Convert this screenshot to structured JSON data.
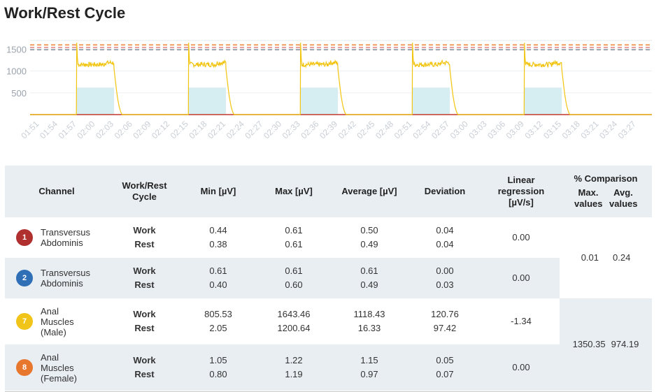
{
  "title": "Work/Rest Cycle",
  "chart_data": {
    "type": "line",
    "y_ticks": [
      "1500",
      "1000",
      "500"
    ],
    "y_tick_values": [
      1500,
      1000,
      500
    ],
    "ylim": [
      0,
      1700
    ],
    "x_tick_labels": [
      "01:51",
      "01:54",
      "01:57",
      "02:00",
      "02:03",
      "02:06",
      "02:09",
      "02:12",
      "02:15",
      "02:18",
      "02:21",
      "02:24",
      "02:27",
      "02:30",
      "02:33",
      "02:36",
      "02:39",
      "02:42",
      "02:45",
      "02:48",
      "02:51",
      "02:54",
      "02:57",
      "03:00",
      "03:03",
      "03:06",
      "03:09",
      "03:12",
      "03:15",
      "03:18",
      "03:21",
      "03:24",
      "03:27"
    ],
    "x_tick_seconds": [
      111,
      114,
      117,
      120,
      123,
      126,
      129,
      132,
      135,
      138,
      141,
      144,
      147,
      150,
      153,
      156,
      159,
      162,
      165,
      168,
      171,
      174,
      177,
      180,
      183,
      186,
      189,
      192,
      195,
      198,
      201,
      204,
      207
    ],
    "xlim": [
      109.5,
      209.5
    ],
    "work_periods": [
      [
        117,
        123
      ],
      [
        135,
        141
      ],
      [
        153,
        159
      ],
      [
        171,
        177
      ],
      [
        189,
        195
      ]
    ],
    "work_threshold": 620,
    "reference_lines": [
      {
        "value": 1600,
        "color": "#f39c5a"
      },
      {
        "value": 1540,
        "color": "#e8a0a0"
      },
      {
        "value": 1490,
        "color": "#9aa3ad"
      }
    ],
    "signal_color": "#f1c40f",
    "rest_line_color": "#c0392b",
    "band_color": "#d6eef2",
    "signal": {
      "rise_offset": 0.25,
      "peak": 1650,
      "plateau": 1150,
      "fall_offset": 6.0,
      "decay_duration": 1.3
    }
  },
  "table": {
    "headers": {
      "channel": "Channel",
      "cycle": "Work/Rest Cycle",
      "min": "Min [µV]",
      "max": "Max [µV]",
      "avg": "Average [µV]",
      "dev": "Deviation",
      "lin": "Linear regression [µV/s]",
      "cmp": "% Comparison",
      "cmp_max": "Max. values",
      "cmp_avg": "Avg. values"
    },
    "rows": [
      {
        "num": "1",
        "color": "#b03030",
        "name": "Transversus Abdominis",
        "work": "Work",
        "rest": "Rest",
        "min_w": "0.44",
        "min_r": "0.38",
        "max_w": "0.61",
        "max_r": "0.61",
        "avg_w": "0.50",
        "avg_r": "0.49",
        "dev_w": "0.04",
        "dev_r": "0.04",
        "lin": "0.00"
      },
      {
        "num": "2",
        "color": "#2f6fb5",
        "name": "Transversus Abdominis",
        "work": "Work",
        "rest": "Rest",
        "min_w": "0.61",
        "min_r": "0.40",
        "max_w": "0.61",
        "max_r": "0.60",
        "avg_w": "0.61",
        "avg_r": "0.49",
        "dev_w": "0.00",
        "dev_r": "0.03",
        "lin": "0.00"
      },
      {
        "num": "7",
        "color": "#f0c419",
        "name": "Anal Muscles (Male)",
        "work": "Work",
        "rest": "Rest",
        "min_w": "805.53",
        "min_r": "2.05",
        "max_w": "1643.46",
        "max_r": "1200.64",
        "avg_w": "1118.43",
        "avg_r": "16.33",
        "dev_w": "120.76",
        "dev_r": "97.42",
        "lin": "-1.34"
      },
      {
        "num": "8",
        "color": "#e8772e",
        "name": "Anal Muscles (Female)",
        "work": "Work",
        "rest": "Rest",
        "min_w": "1.05",
        "min_r": "0.80",
        "max_w": "1.22",
        "max_r": "1.19",
        "avg_w": "1.15",
        "avg_r": "0.97",
        "dev_w": "0.05",
        "dev_r": "0.07",
        "lin": "0.00"
      }
    ],
    "comparisons": [
      {
        "max": "0.01",
        "avg": "0.24"
      },
      {
        "max": "1350.35",
        "avg": "974.19"
      }
    ]
  }
}
